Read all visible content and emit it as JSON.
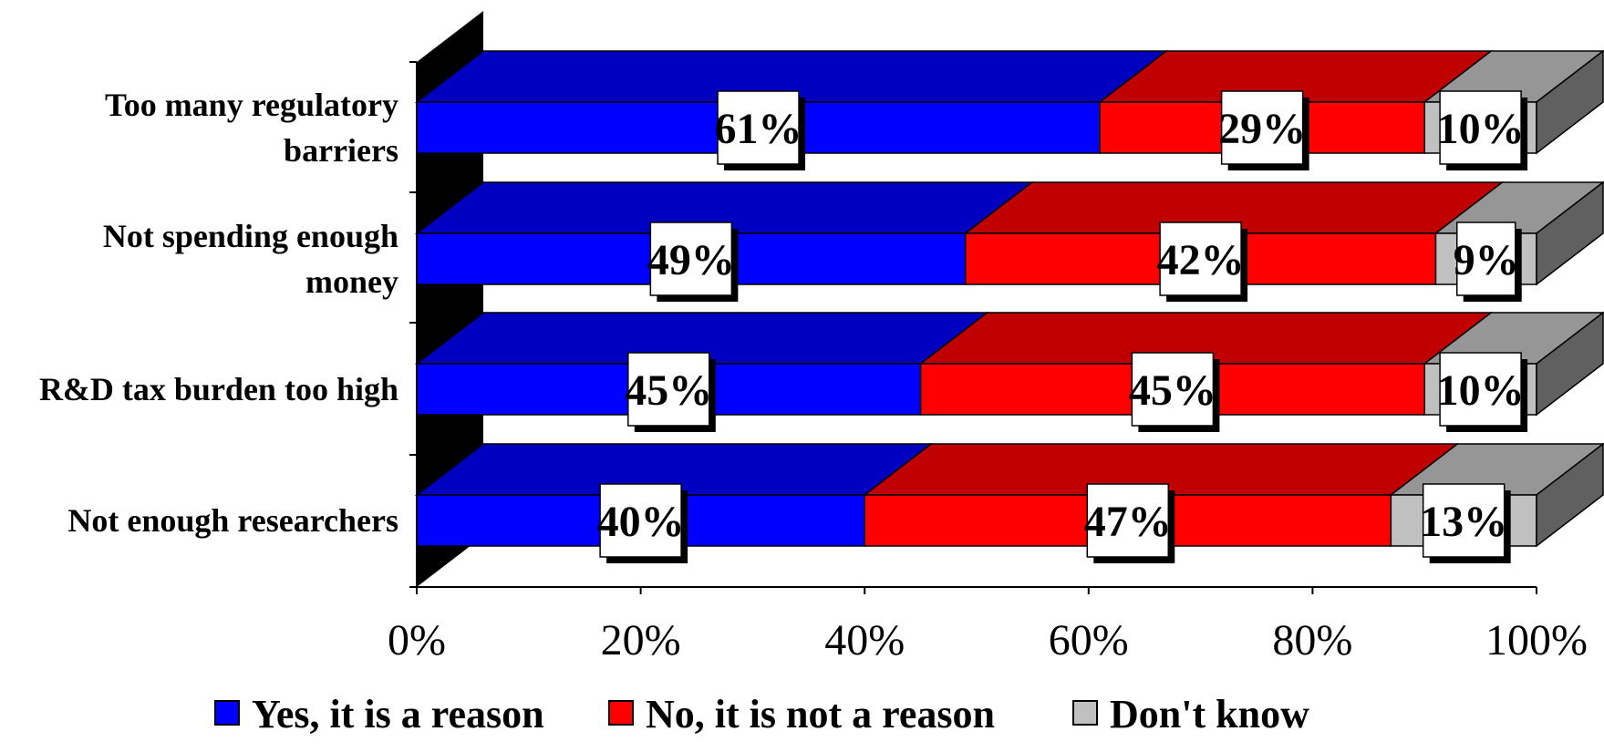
{
  "chart_data": {
    "type": "bar",
    "orientation": "horizontal",
    "stacked": "percent",
    "three_d": true,
    "categories": [
      [
        "Too many regulatory",
        "barriers"
      ],
      [
        "Not spending enough",
        "money"
      ],
      [
        "R&D tax burden too high"
      ],
      [
        "Not enough researchers"
      ]
    ],
    "series": [
      {
        "name": "Yes, it is a reason",
        "values": [
          61,
          49,
          45,
          40
        ],
        "labels": [
          "61%",
          "49%",
          "45%",
          "40%"
        ]
      },
      {
        "name": "No, it is not a reason",
        "values": [
          29,
          42,
          45,
          47
        ],
        "labels": [
          "29%",
          "42%",
          "45%",
          "47%"
        ]
      },
      {
        "name": "Don't know",
        "values": [
          10,
          9,
          10,
          13
        ],
        "labels": [
          "10%",
          "9%",
          "10%",
          "13%"
        ]
      }
    ],
    "xlim": [
      0,
      100
    ],
    "x_ticks": [
      "0%",
      "20%",
      "40%",
      "60%",
      "80%",
      "100%"
    ],
    "grid": false,
    "legend_position": "bottom"
  },
  "colors": {
    "series_front": [
      "#0000ff",
      "#ff0000",
      "#c0c0c0"
    ],
    "series_top": [
      "#0000c0",
      "#c00000",
      "#969696"
    ],
    "series_side": [
      "#000080",
      "#800000",
      "#606060"
    ],
    "wall": "#000000",
    "label_box": "#ffffff",
    "label_shadow": "#000000"
  }
}
